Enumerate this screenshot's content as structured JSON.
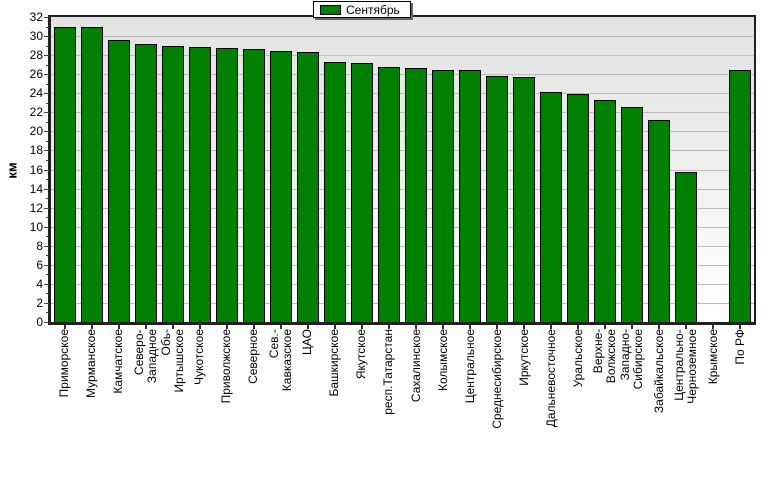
{
  "chart_data": {
    "type": "bar",
    "ylabel": "км",
    "xlabel": "",
    "ylim": [
      0,
      32
    ],
    "ytick_step": 2,
    "grid": true,
    "legend_position": "top-center",
    "categories": [
      "Приморское",
      "Мурманское",
      "Камчатское",
      "Северо-\nЗападное",
      "Обь-\nИртышское",
      "Чукотское",
      "Приволжское",
      "Северное",
      "Сев.-\nКавказское",
      "ЦАО",
      "Башкирское",
      "Якутское",
      "респ.Татарстан",
      "Сахалинское",
      "Колымское",
      "Центральное",
      "Среднесибирское",
      "Иркутское",
      "Дальневосточное",
      "Уральское",
      "Верхне-\nВолжское",
      "Западно-\nСибирское",
      "Забайкальское",
      "Центрально-\nЧерноземное",
      "Крымское",
      "По РФ"
    ],
    "series": [
      {
        "name": "Сентябрь",
        "color": "#008000",
        "values": [
          31.0,
          31.0,
          29.6,
          29.2,
          29.0,
          28.8,
          28.7,
          28.6,
          28.4,
          28.3,
          27.3,
          27.2,
          26.8,
          26.6,
          26.4,
          26.4,
          25.8,
          25.7,
          24.1,
          23.9,
          23.3,
          22.6,
          21.2,
          15.7,
          null,
          26.4
        ]
      }
    ]
  },
  "colors": {
    "bar_fill": "#008000",
    "bar_border": "#000000",
    "plot_bg_top": "#E3E3E3",
    "plot_bg_bottom": "#FFFFFF",
    "gridline": "#BDBDBD",
    "frame": "#202020",
    "text": "#000000",
    "legend_bg": "#FFFFFF",
    "legend_shadow": "#666666"
  }
}
